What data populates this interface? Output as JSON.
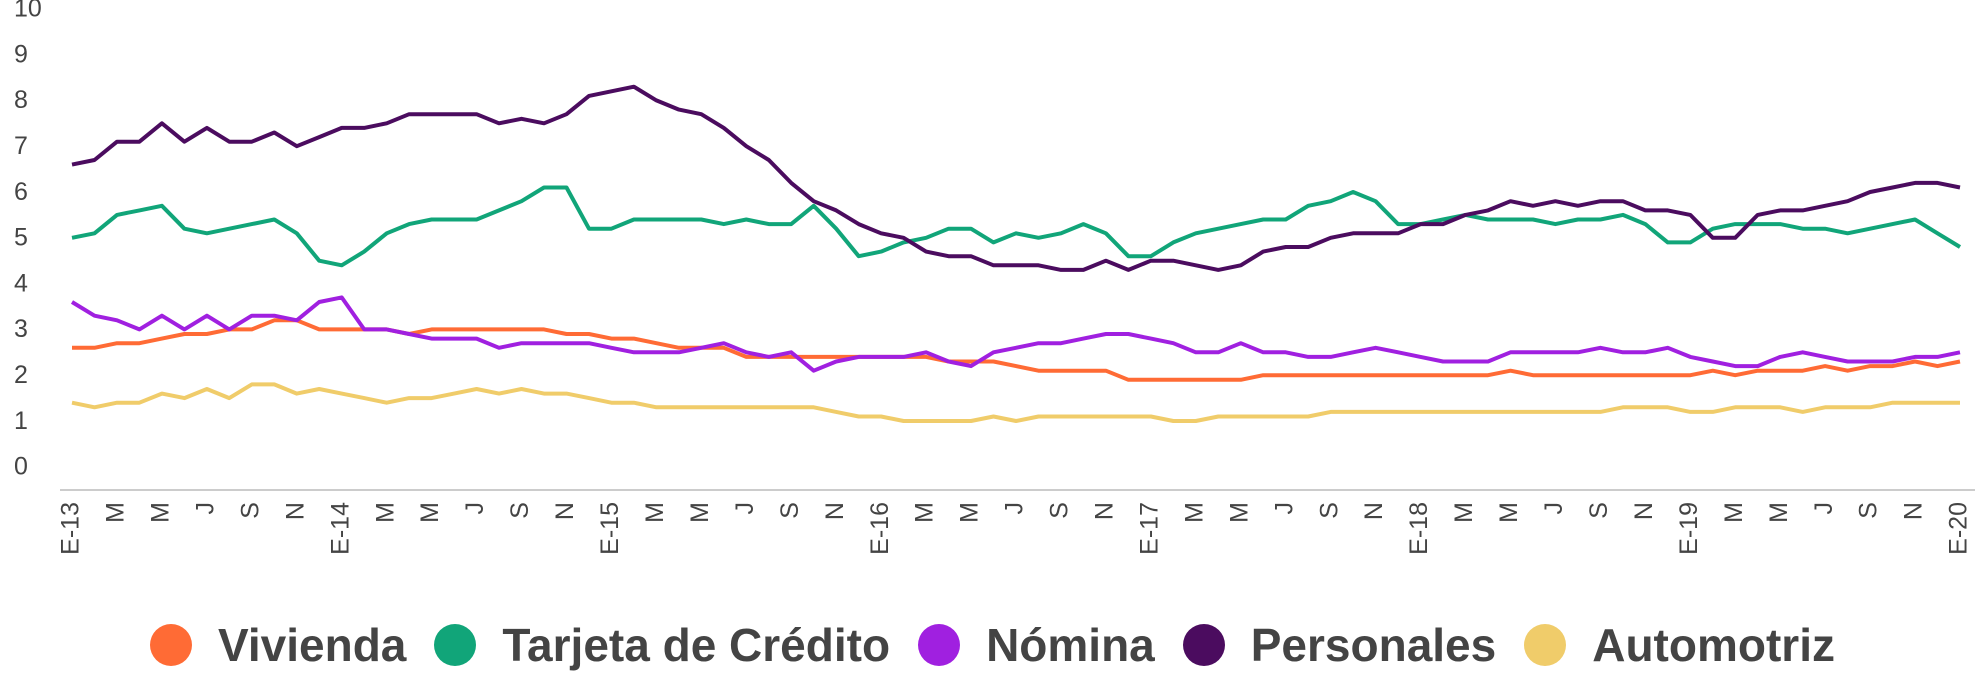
{
  "chart_data": {
    "type": "line",
    "categories": [
      "E-13",
      null,
      "M",
      null,
      "M",
      null,
      "J",
      null,
      "S",
      null,
      "N",
      null,
      "E-14",
      null,
      "M",
      null,
      "M",
      null,
      "J",
      null,
      "S",
      null,
      "N",
      null,
      "E-15",
      null,
      "M",
      null,
      "M",
      null,
      "J",
      null,
      "S",
      null,
      "N",
      null,
      "E-16",
      null,
      "M",
      null,
      "M",
      null,
      "J",
      null,
      "S",
      null,
      "N",
      null,
      "E-17",
      null,
      "M",
      null,
      "M",
      null,
      "J",
      null,
      "S",
      null,
      "N",
      null,
      "E-18",
      null,
      "M",
      null,
      "M",
      null,
      "J",
      null,
      "S",
      null,
      "N",
      null,
      "E-19",
      null,
      "M",
      null,
      "M",
      null,
      "J",
      null,
      "S",
      null,
      "N",
      null,
      "E-20"
    ],
    "ylim": [
      0,
      10
    ],
    "yticks": [
      0,
      1,
      2,
      3,
      4,
      5,
      6,
      7,
      8,
      9,
      10
    ],
    "series": [
      {
        "name": "Vivienda",
        "color": "#ff6b35",
        "values": [
          2.8,
          2.8,
          2.9,
          2.9,
          3.0,
          3.1,
          3.1,
          3.2,
          3.2,
          3.4,
          3.4,
          3.2,
          3.2,
          3.2,
          3.2,
          3.1,
          3.2,
          3.2,
          3.2,
          3.2,
          3.2,
          3.2,
          3.1,
          3.1,
          3.0,
          3.0,
          2.9,
          2.8,
          2.8,
          2.8,
          2.6,
          2.6,
          2.6,
          2.6,
          2.6,
          2.6,
          2.6,
          2.6,
          2.6,
          2.5,
          2.5,
          2.5,
          2.4,
          2.3,
          2.3,
          2.3,
          2.3,
          2.1,
          2.1,
          2.1,
          2.1,
          2.1,
          2.1,
          2.2,
          2.2,
          2.2,
          2.2,
          2.2,
          2.2,
          2.2,
          2.2,
          2.2,
          2.2,
          2.2,
          2.3,
          2.2,
          2.2,
          2.2,
          2.2,
          2.2,
          2.2,
          2.2,
          2.2,
          2.3,
          2.2,
          2.3,
          2.3,
          2.3,
          2.4,
          2.3,
          2.4,
          2.4,
          2.5,
          2.4,
          2.5
        ]
      },
      {
        "name": "Tarjeta de Crédito",
        "color": "#11a579",
        "values": [
          5.2,
          5.3,
          5.7,
          5.8,
          5.9,
          5.4,
          5.3,
          5.4,
          5.5,
          5.6,
          5.3,
          4.7,
          4.6,
          4.9,
          5.3,
          5.5,
          5.6,
          5.6,
          5.6,
          5.8,
          6.0,
          6.3,
          6.3,
          5.4,
          5.4,
          5.6,
          5.6,
          5.6,
          5.6,
          5.5,
          5.6,
          5.5,
          5.5,
          5.9,
          5.4,
          4.8,
          4.9,
          5.1,
          5.2,
          5.4,
          5.4,
          5.1,
          5.3,
          5.2,
          5.3,
          5.5,
          5.3,
          4.8,
          4.8,
          5.1,
          5.3,
          5.4,
          5.5,
          5.6,
          5.6,
          5.9,
          6.0,
          6.2,
          6.0,
          5.5,
          5.5,
          5.6,
          5.7,
          5.6,
          5.6,
          5.6,
          5.5,
          5.6,
          5.6,
          5.7,
          5.5,
          5.1,
          5.1,
          5.4,
          5.5,
          5.5,
          5.5,
          5.4,
          5.4,
          5.3,
          5.4,
          5.5,
          5.6,
          5.3,
          5.0
        ]
      },
      {
        "name": "Nómina",
        "color": "#a020e0",
        "values": [
          3.8,
          3.5,
          3.4,
          3.2,
          3.5,
          3.2,
          3.5,
          3.2,
          3.5,
          3.5,
          3.4,
          3.8,
          3.9,
          3.2,
          3.2,
          3.1,
          3.0,
          3.0,
          3.0,
          2.8,
          2.9,
          2.9,
          2.9,
          2.9,
          2.8,
          2.7,
          2.7,
          2.7,
          2.8,
          2.9,
          2.7,
          2.6,
          2.7,
          2.3,
          2.5,
          2.6,
          2.6,
          2.6,
          2.7,
          2.5,
          2.4,
          2.7,
          2.8,
          2.9,
          2.9,
          3.0,
          3.1,
          3.1,
          3.0,
          2.9,
          2.7,
          2.7,
          2.9,
          2.7,
          2.7,
          2.6,
          2.6,
          2.7,
          2.8,
          2.7,
          2.6,
          2.5,
          2.5,
          2.5,
          2.7,
          2.7,
          2.7,
          2.7,
          2.8,
          2.7,
          2.7,
          2.8,
          2.6,
          2.5,
          2.4,
          2.4,
          2.6,
          2.7,
          2.6,
          2.5,
          2.5,
          2.5,
          2.6,
          2.6,
          2.7
        ]
      },
      {
        "name": "Personales",
        "color": "#4b0c5f",
        "values": [
          6.8,
          6.9,
          7.3,
          7.3,
          7.7,
          7.3,
          7.6,
          7.3,
          7.3,
          7.5,
          7.2,
          7.4,
          7.6,
          7.6,
          7.7,
          7.9,
          7.9,
          7.9,
          7.9,
          7.7,
          7.8,
          7.7,
          7.9,
          8.3,
          8.4,
          8.5,
          8.2,
          8.0,
          7.9,
          7.6,
          7.2,
          6.9,
          6.4,
          6.0,
          5.8,
          5.5,
          5.3,
          5.2,
          4.9,
          4.8,
          4.8,
          4.6,
          4.6,
          4.6,
          4.5,
          4.5,
          4.7,
          4.5,
          4.7,
          4.7,
          4.6,
          4.5,
          4.6,
          4.9,
          5.0,
          5.0,
          5.2,
          5.3,
          5.3,
          5.3,
          5.5,
          5.5,
          5.7,
          5.8,
          6.0,
          5.9,
          6.0,
          5.9,
          6.0,
          6.0,
          5.8,
          5.8,
          5.7,
          5.2,
          5.2,
          5.7,
          5.8,
          5.8,
          5.9,
          6.0,
          6.2,
          6.3,
          6.4,
          6.4,
          6.3
        ]
      },
      {
        "name": "Automotriz",
        "color": "#f0cc6a",
        "values": [
          1.6,
          1.5,
          1.6,
          1.6,
          1.8,
          1.7,
          1.9,
          1.7,
          2.0,
          2.0,
          1.8,
          1.9,
          1.8,
          1.7,
          1.6,
          1.7,
          1.7,
          1.8,
          1.9,
          1.8,
          1.9,
          1.8,
          1.8,
          1.7,
          1.6,
          1.6,
          1.5,
          1.5,
          1.5,
          1.5,
          1.5,
          1.5,
          1.5,
          1.5,
          1.4,
          1.3,
          1.3,
          1.2,
          1.2,
          1.2,
          1.2,
          1.3,
          1.2,
          1.3,
          1.3,
          1.3,
          1.3,
          1.3,
          1.3,
          1.2,
          1.2,
          1.3,
          1.3,
          1.3,
          1.3,
          1.3,
          1.4,
          1.4,
          1.4,
          1.4,
          1.4,
          1.4,
          1.4,
          1.4,
          1.4,
          1.4,
          1.4,
          1.4,
          1.4,
          1.5,
          1.5,
          1.5,
          1.4,
          1.4,
          1.5,
          1.5,
          1.5,
          1.4,
          1.5,
          1.5,
          1.5,
          1.6,
          1.6,
          1.6,
          1.6
        ]
      }
    ]
  }
}
